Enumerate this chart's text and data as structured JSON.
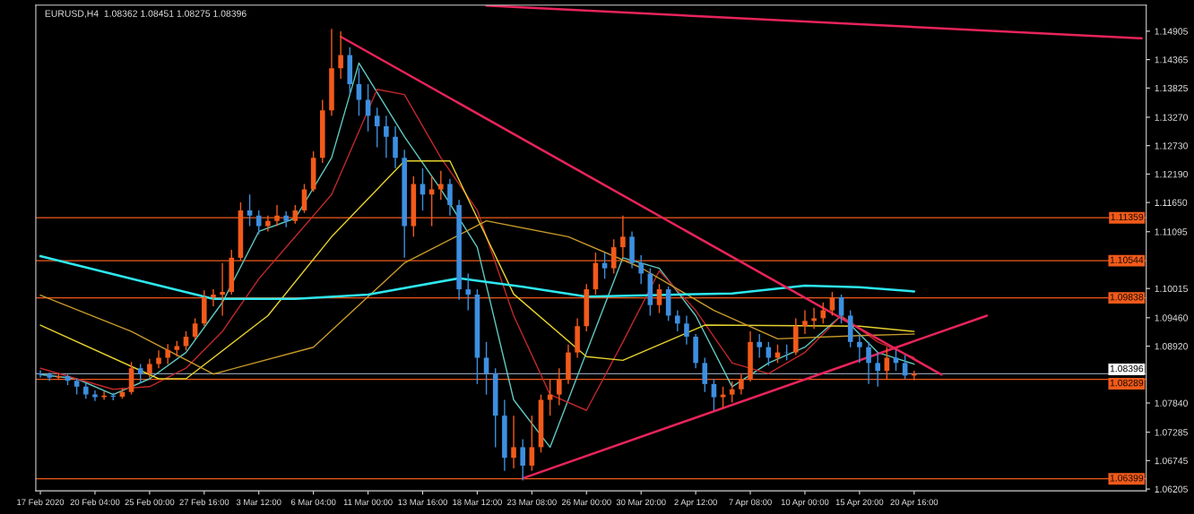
{
  "chart_data": {
    "type": "candlestick",
    "title": "EURUSD,H4  1.08362 1.08451 1.08275 1.08396",
    "categories": [
      "17 Feb 2020",
      null,
      null,
      null,
      null,
      null,
      "20 Feb 04:00",
      null,
      null,
      null,
      null,
      null,
      "25 Feb 00:00",
      null,
      null,
      null,
      null,
      null,
      "27 Feb 16:00",
      null,
      null,
      null,
      null,
      null,
      "3 Mar 12:00",
      null,
      null,
      null,
      null,
      null,
      "6 Mar 04:00",
      null,
      null,
      null,
      null,
      null,
      "11 Mar 00:00",
      null,
      null,
      null,
      null,
      null,
      "13 Mar 16:00",
      null,
      null,
      null,
      null,
      null,
      "18 Mar 12:00",
      null,
      null,
      null,
      null,
      null,
      "23 Mar 08:00",
      null,
      null,
      null,
      null,
      null,
      "26 Mar 00:00",
      null,
      null,
      null,
      null,
      null,
      "30 Mar 20:00",
      null,
      null,
      null,
      null,
      null,
      "2 Apr 12:00",
      null,
      null,
      null,
      null,
      null,
      "7 Apr 08:00",
      null,
      null,
      null,
      null,
      null,
      "10 Apr 00:00",
      null,
      null,
      null,
      null,
      null,
      "15 Apr 20:00",
      null,
      null,
      null,
      null,
      null,
      "20 Apr 16:00",
      null,
      null,
      null,
      null,
      null,
      null,
      null,
      null,
      null,
      null,
      null,
      null,
      null,
      null,
      null,
      null,
      null,
      null,
      null,
      null,
      null,
      null,
      null,
      null,
      null
    ],
    "colors": [
      "#3d8fe0",
      "#3d8fe0",
      "#f25a1a",
      "#3d8fe0",
      "#3d8fe0",
      "#3d8fe0",
      "#3d8fe0",
      "#f25a1a",
      "#3d8fe0",
      "#f25a1a",
      "#f25a1a",
      "#3d8fe0",
      "#f25a1a",
      "#f25a1a",
      "#f25a1a",
      "#f25a1a",
      "#f25a1a",
      "#f25a1a",
      "#f25a1a",
      "#f25a1a",
      "#f25a1a",
      "#f25a1a",
      "#f25a1a",
      "#3d8fe0",
      "#3d8fe0",
      "#f25a1a",
      "#f25a1a",
      "#3d8fe0",
      "#f25a1a",
      "#f25a1a",
      "#f25a1a",
      "#f25a1a",
      "#f25a1a",
      "#f25a1a",
      "#3d8fe0",
      "#3d8fe0",
      "#3d8fe0",
      "#3d8fe0",
      "#3d8fe0",
      "#3d8fe0",
      "#3d8fe0",
      "#f25a1a",
      "#3d8fe0",
      "#f25a1a",
      "#f25a1a",
      "#3d8fe0",
      "#3d8fe0",
      "#3d8fe0",
      "#3d8fe0",
      "#3d8fe0",
      "#3d8fe0",
      "#3d8fe0",
      "#f25a1a",
      "#3d8fe0",
      "#f25a1a",
      "#f25a1a",
      "#f25a1a",
      "#f25a1a",
      "#f25a1a",
      "#f25a1a",
      "#f25a1a",
      "#f25a1a",
      "#3d8fe0",
      "#f25a1a",
      "#f25a1a",
      "#3d8fe0",
      "#3d8fe0",
      "#3d8fe0",
      "#f25a1a",
      "#3d8fe0",
      "#3d8fe0",
      "#3d8fe0",
      "#3d8fe0",
      "#3d8fe0",
      "#3d8fe0",
      "#f25a1a",
      "#f25a1a",
      "#f25a1a",
      "#f25a1a",
      "#3d8fe0",
      "#3d8fe0",
      "#f25a1a",
      "#3d8fe0",
      "#f25a1a",
      "#f25a1a",
      "#f25a1a",
      "#f25a1a",
      "#f25a1a",
      "#3d8fe0",
      "#3d8fe0",
      "#3d8fe0",
      "#3d8fe0",
      "#3d8fe0",
      "#f25a1a",
      "#3d8fe0",
      "#3d8fe0",
      "#f25a1a",
      null,
      null,
      null,
      null,
      null,
      null,
      null,
      null,
      null,
      null,
      null,
      null,
      null,
      null,
      null,
      null,
      null,
      null,
      null,
      null,
      null,
      null,
      null,
      null,
      null
    ],
    "ohlc": [
      [
        1.084,
        1.0846,
        1.0832,
        1.0838
      ],
      [
        1.0838,
        1.0842,
        1.0826,
        1.0832
      ],
      [
        1.0832,
        1.084,
        1.0828,
        1.0835
      ],
      [
        1.0835,
        1.0838,
        1.0818,
        1.0826
      ],
      [
        1.0826,
        1.083,
        1.08,
        1.0815
      ],
      [
        1.0815,
        1.0822,
        1.0792,
        1.08
      ],
      [
        1.08,
        1.0808,
        1.0788,
        1.0795
      ],
      [
        1.0795,
        1.0806,
        1.079,
        1.0798
      ],
      [
        1.0798,
        1.0803,
        1.0789,
        1.0796
      ],
      [
        1.0796,
        1.0812,
        1.0792,
        1.0805
      ],
      [
        1.0805,
        1.0862,
        1.08,
        1.085
      ],
      [
        1.085,
        1.0858,
        1.0822,
        1.084
      ],
      [
        1.084,
        1.0868,
        1.0832,
        1.0858
      ],
      [
        1.0858,
        1.0884,
        1.085,
        1.087
      ],
      [
        1.087,
        1.0896,
        1.0858,
        1.0885
      ],
      [
        1.0885,
        1.0902,
        1.0872,
        1.0892
      ],
      [
        1.0892,
        1.092,
        1.0884,
        1.091
      ],
      [
        1.091,
        1.0945,
        1.0905,
        1.0935
      ],
      [
        1.0935,
        1.0998,
        1.093,
        1.0985
      ],
      [
        1.0985,
        1.1,
        1.0968,
        1.099
      ],
      [
        1.099,
        1.105,
        1.095,
        1.0995
      ],
      [
        1.0995,
        1.1075,
        1.099,
        1.106
      ],
      [
        1.106,
        1.1165,
        1.1055,
        1.115
      ],
      [
        1.115,
        1.118,
        1.112,
        1.114
      ],
      [
        1.114,
        1.115,
        1.1105,
        1.112
      ],
      [
        1.112,
        1.114,
        1.111,
        1.113
      ],
      [
        1.113,
        1.116,
        1.112,
        1.114
      ],
      [
        1.114,
        1.1148,
        1.1118,
        1.113
      ],
      [
        1.113,
        1.116,
        1.1125,
        1.115
      ],
      [
        1.115,
        1.12,
        1.1145,
        1.119
      ],
      [
        1.119,
        1.1262,
        1.1185,
        1.125
      ],
      [
        1.125,
        1.136,
        1.124,
        1.134
      ],
      [
        1.134,
        1.1495,
        1.133,
        1.142
      ],
      [
        1.142,
        1.149,
        1.14,
        1.1445
      ],
      [
        1.1445,
        1.146,
        1.137,
        1.139
      ],
      [
        1.139,
        1.142,
        1.133,
        1.136
      ],
      [
        1.136,
        1.139,
        1.13,
        1.133
      ],
      [
        1.133,
        1.1345,
        1.127,
        1.131
      ],
      [
        1.131,
        1.133,
        1.125,
        1.129
      ],
      [
        1.129,
        1.131,
        1.123,
        1.125
      ],
      [
        1.125,
        1.1265,
        1.106,
        1.112
      ],
      [
        1.112,
        1.1215,
        1.11,
        1.12
      ],
      [
        1.12,
        1.123,
        1.115,
        1.118
      ],
      [
        1.118,
        1.1215,
        1.112,
        1.119
      ],
      [
        1.119,
        1.1225,
        1.117,
        1.12
      ],
      [
        1.12,
        1.121,
        1.114,
        1.116
      ],
      [
        1.116,
        1.117,
        1.098,
        1.1
      ],
      [
        1.1,
        1.103,
        1.096,
        1.099
      ],
      [
        1.099,
        1.1,
        1.082,
        1.087
      ],
      [
        1.087,
        1.09,
        1.08,
        1.084
      ],
      [
        1.084,
        1.085,
        1.07,
        1.076
      ],
      [
        1.076,
        1.079,
        1.0655,
        1.068
      ],
      [
        1.068,
        1.076,
        1.066,
        1.07
      ],
      [
        1.07,
        1.0715,
        1.0637,
        1.0665
      ],
      [
        1.0665,
        1.076,
        1.0655,
        1.07
      ],
      [
        1.07,
        1.08,
        1.069,
        1.079
      ],
      [
        1.079,
        1.083,
        1.076,
        1.08
      ],
      [
        1.08,
        1.085,
        1.078,
        1.083
      ],
      [
        1.083,
        1.0895,
        1.082,
        1.088
      ],
      [
        1.088,
        1.0945,
        1.087,
        1.093
      ],
      [
        1.093,
        1.101,
        1.092,
        1.1
      ],
      [
        1.1,
        1.107,
        1.099,
        1.105
      ],
      [
        1.105,
        1.107,
        1.102,
        1.104
      ],
      [
        1.104,
        1.1095,
        1.103,
        1.108
      ],
      [
        1.108,
        1.114,
        1.106,
        1.11
      ],
      [
        1.11,
        1.111,
        1.104,
        1.105
      ],
      [
        1.105,
        1.1065,
        1.101,
        1.103
      ],
      [
        1.103,
        1.104,
        1.095,
        1.097
      ],
      [
        1.097,
        1.101,
        1.0955,
        1.1
      ],
      [
        1.1,
        1.1005,
        1.094,
        1.095
      ],
      [
        1.095,
        1.096,
        1.092,
        1.0935
      ],
      [
        1.0935,
        1.095,
        1.0895,
        1.091
      ],
      [
        1.091,
        1.0915,
        1.085,
        1.086
      ],
      [
        1.086,
        1.087,
        1.0805,
        1.082
      ],
      [
        1.082,
        1.083,
        1.077,
        1.0795
      ],
      [
        1.0795,
        1.0815,
        1.0775,
        1.08
      ],
      [
        1.08,
        1.0825,
        1.0785,
        1.081
      ],
      [
        1.081,
        1.084,
        1.08,
        1.083
      ],
      [
        1.083,
        1.092,
        1.0825,
        1.09
      ],
      [
        1.09,
        1.0915,
        1.087,
        1.089
      ],
      [
        1.089,
        1.09,
        1.0855,
        1.087
      ],
      [
        1.087,
        1.0895,
        1.086,
        1.088
      ],
      [
        1.088,
        1.0895,
        1.0865,
        1.088
      ],
      [
        1.088,
        1.0945,
        1.0875,
        1.093
      ],
      [
        1.093,
        1.096,
        1.0915,
        1.094
      ],
      [
        1.094,
        1.0965,
        1.0925,
        1.0945
      ],
      [
        1.0945,
        1.0975,
        1.0935,
        1.096
      ],
      [
        1.096,
        1.0995,
        1.095,
        1.0985
      ],
      [
        1.0985,
        1.099,
        1.0935,
        1.095
      ],
      [
        1.095,
        1.096,
        1.089,
        1.09
      ],
      [
        1.09,
        1.0915,
        1.086,
        1.089
      ],
      [
        1.089,
        1.09,
        1.082,
        1.086
      ],
      [
        1.086,
        1.088,
        1.0815,
        1.0845
      ],
      [
        1.0845,
        1.089,
        1.083,
        1.087
      ],
      [
        1.087,
        1.0885,
        1.0845,
        1.086
      ],
      [
        1.086,
        1.0875,
        1.083,
        1.08362
      ],
      [
        1.08362,
        1.08451,
        1.08275,
        1.08396
      ],
      null,
      null,
      null,
      null,
      null,
      null,
      null,
      null,
      null,
      null,
      null,
      null,
      null,
      null,
      null,
      null,
      null,
      null,
      null,
      null,
      null,
      null,
      null,
      null,
      null
    ],
    "series": [
      {
        "type": "line",
        "color": "#5fc9c0",
        "values": [
          1.0838,
          null,
          null,
          null,
          1.083,
          null,
          null,
          null,
          1.08,
          null,
          null,
          null,
          1.083,
          null,
          null,
          null,
          1.088,
          null,
          null,
          null,
          1.0975,
          null,
          null,
          null,
          1.111,
          null,
          null,
          null,
          1.1135,
          null,
          null,
          null,
          1.125,
          null,
          null,
          1.143,
          null,
          null,
          null,
          null,
          1.129,
          null,
          null,
          null,
          1.119,
          null,
          null,
          null,
          1.108,
          null,
          null,
          null,
          1.079,
          null,
          null,
          null,
          1.07,
          null,
          null,
          null,
          1.088,
          null,
          null,
          null,
          1.106,
          null,
          null,
          null,
          1.104,
          null,
          null,
          null,
          1.095,
          null,
          null,
          null,
          1.0815,
          null,
          null,
          null,
          1.086,
          null,
          null,
          null,
          1.089,
          null,
          null,
          null,
          1.095,
          null,
          null,
          null,
          1.088,
          null,
          null,
          null,
          1.0858,
          null,
          null,
          null,
          null,
          null,
          null,
          null,
          null,
          null,
          null,
          null,
          null,
          null,
          null,
          null,
          null,
          null,
          null,
          null,
          null,
          null,
          null,
          null,
          null,
          null
        ]
      },
      {
        "type": "line",
        "color": "#c0282a",
        "values": [
          1.085,
          null,
          null,
          null,
          null,
          null,
          null,
          null,
          1.081,
          null,
          null,
          null,
          1.0815,
          null,
          null,
          null,
          1.085,
          null,
          null,
          null,
          1.092,
          null,
          null,
          null,
          1.102,
          null,
          null,
          null,
          1.11,
          null,
          null,
          null,
          1.118,
          null,
          null,
          null,
          null,
          1.138,
          null,
          null,
          1.137,
          null,
          null,
          null,
          1.125,
          null,
          null,
          null,
          1.115,
          null,
          null,
          null,
          1.095,
          null,
          null,
          null,
          1.08,
          null,
          null,
          null,
          1.077,
          null,
          null,
          null,
          1.09,
          null,
          null,
          null,
          1.1035,
          null,
          null,
          null,
          1.096,
          null,
          null,
          null,
          1.086,
          null,
          null,
          null,
          1.084,
          null,
          null,
          null,
          1.088,
          null,
          null,
          null,
          1.095,
          null,
          null,
          null,
          1.09,
          null,
          null,
          null,
          1.087,
          null,
          null,
          null,
          null,
          null,
          null,
          null,
          null,
          null,
          null,
          null,
          null,
          null,
          null,
          null,
          null,
          null,
          null,
          null,
          null,
          null,
          null,
          null,
          null,
          null
        ]
      },
      {
        "type": "line",
        "color": "#e6d22e",
        "values": [
          1.0932,
          null,
          null,
          null,
          null,
          null,
          null,
          null,
          null,
          null,
          null,
          null,
          null,
          1.083,
          null,
          null,
          1.083,
          null,
          null,
          null,
          null,
          null,
          null,
          null,
          null,
          1.095,
          null,
          null,
          null,
          null,
          null,
          null,
          1.11,
          null,
          null,
          null,
          null,
          null,
          null,
          null,
          1.1244,
          null,
          null,
          null,
          null,
          1.1244,
          null,
          null,
          null,
          null,
          null,
          null,
          1.0991,
          null,
          null,
          null,
          null,
          null,
          null,
          null,
          1.0872,
          null,
          null,
          null,
          1.0865,
          null,
          null,
          null,
          null,
          null,
          null,
          null,
          null,
          1.0932,
          null,
          null,
          null,
          null,
          null,
          null,
          null,
          null,
          null,
          null,
          null,
          null,
          null,
          null,
          null,
          null,
          1.093,
          null,
          null,
          null,
          null,
          null,
          1.092,
          null,
          null,
          null,
          null,
          null,
          null,
          null,
          null,
          null,
          null,
          null,
          null,
          null,
          null,
          null,
          null,
          null,
          null,
          null,
          null,
          null,
          null,
          null,
          null,
          null
        ]
      },
      {
        "type": "line",
        "color": "#c89a2a",
        "values": [
          1.0989,
          null,
          null,
          null,
          null,
          null,
          null,
          null,
          null,
          null,
          1.092,
          null,
          null,
          null,
          null,
          null,
          null,
          null,
          null,
          1.0839,
          null,
          null,
          null,
          null,
          null,
          null,
          null,
          null,
          null,
          null,
          1.089,
          null,
          null,
          null,
          null,
          null,
          null,
          null,
          null,
          null,
          1.105,
          null,
          null,
          null,
          null,
          null,
          null,
          null,
          null,
          1.113,
          null,
          null,
          null,
          null,
          null,
          null,
          null,
          null,
          1.11,
          null,
          null,
          null,
          null,
          null,
          null,
          null,
          1.1041,
          null,
          null,
          null,
          null,
          null,
          null,
          null,
          1.096,
          null,
          null,
          null,
          null,
          null,
          null,
          1.0906,
          null,
          null,
          null,
          null,
          null,
          null,
          null,
          null,
          1.0912,
          null,
          null,
          null,
          null,
          null,
          1.0915,
          null,
          null,
          null,
          null,
          null,
          null,
          null,
          null,
          null,
          null,
          null,
          null,
          null,
          null,
          null,
          null,
          null,
          null,
          null,
          null,
          null,
          null,
          null,
          null,
          null
        ]
      },
      {
        "type": "line",
        "color": "#2ee8f0",
        "values": [
          1.1063,
          null,
          null,
          null,
          null,
          null,
          null,
          null,
          null,
          null,
          1.102,
          null,
          null,
          null,
          null,
          null,
          null,
          null,
          null,
          1.0982,
          null,
          null,
          null,
          null,
          null,
          null,
          null,
          null,
          1.0982,
          null,
          null,
          null,
          null,
          null,
          null,
          null,
          1.099,
          null,
          null,
          null,
          null,
          null,
          null,
          null,
          null,
          null,
          1.1021,
          null,
          null,
          null,
          null,
          null,
          null,
          1.1005,
          null,
          null,
          null,
          null,
          null,
          null,
          1.0986,
          null,
          null,
          null,
          null,
          null,
          null,
          null,
          null,
          null,
          1.099,
          null,
          null,
          null,
          null,
          null,
          1.0992,
          null,
          null,
          null,
          null,
          null,
          null,
          null,
          1.1007,
          null,
          null,
          null,
          null,
          null,
          1.1004,
          null,
          null,
          null,
          null,
          null,
          1.0996,
          null,
          null,
          null,
          null,
          null,
          null,
          null,
          null,
          null,
          null,
          null,
          null,
          null,
          null,
          null,
          null,
          null,
          null,
          null,
          null,
          null,
          null,
          null,
          null,
          null
        ]
      },
      {
        "type": "line",
        "color": "#e8245a",
        "values": [
          null,
          null,
          null,
          null,
          null,
          null,
          null,
          null,
          null,
          null,
          null,
          null,
          null,
          null,
          null,
          null,
          null,
          null,
          null,
          null,
          null,
          null,
          null,
          null,
          null,
          null,
          null,
          null,
          null,
          null,
          null,
          null,
          null,
          1.148,
          null,
          null,
          null,
          null,
          null,
          null,
          null,
          null,
          null,
          null,
          null,
          null,
          null,
          null,
          null,
          null,
          null,
          null,
          null,
          null,
          null,
          null,
          null,
          null,
          null,
          null,
          null,
          null,
          null,
          null,
          null,
          null,
          null,
          null,
          null,
          null,
          null,
          null,
          null,
          null,
          null,
          null,
          null,
          null,
          null,
          null,
          null,
          null,
          null,
          null,
          null,
          null,
          null,
          null,
          null,
          null,
          null,
          null,
          null,
          null,
          null,
          null,
          null,
          null,
          null,
          1.0838,
          null,
          null,
          null,
          null,
          null,
          null,
          null,
          null,
          null,
          null,
          null,
          null,
          null,
          null,
          null,
          null,
          null,
          null,
          null,
          null,
          null,
          null
        ]
      },
      {
        "type": "line",
        "color": "#e8245a",
        "values": [
          null,
          null,
          null,
          null,
          null,
          null,
          null,
          null,
          null,
          null,
          null,
          null,
          null,
          null,
          null,
          null,
          null,
          null,
          null,
          null,
          null,
          null,
          null,
          null,
          null,
          null,
          null,
          null,
          null,
          null,
          null,
          null,
          null,
          null,
          null,
          null,
          null,
          null,
          null,
          null,
          null,
          null,
          null,
          null,
          null,
          null,
          null,
          null,
          null,
          null,
          null,
          null,
          null,
          1.0641,
          null,
          null,
          null,
          null,
          null,
          null,
          null,
          null,
          null,
          null,
          null,
          null,
          null,
          null,
          null,
          null,
          null,
          null,
          null,
          null,
          null,
          null,
          null,
          null,
          null,
          null,
          null,
          null,
          null,
          null,
          null,
          null,
          null,
          null,
          null,
          null,
          null,
          null,
          null,
          null,
          null,
          null,
          null,
          null,
          null,
          null,
          null,
          null,
          null,
          null,
          1.095,
          null,
          null,
          null,
          null,
          null,
          null,
          null,
          null,
          null,
          null,
          null,
          null,
          null,
          null,
          null,
          null,
          null
        ]
      },
      {
        "type": "line",
        "color": "#e8245a",
        "values": [
          null,
          null,
          null,
          null,
          null,
          null,
          null,
          null,
          null,
          null,
          null,
          null,
          null,
          null,
          null,
          null,
          null,
          null,
          null,
          null,
          null,
          null,
          null,
          null,
          null,
          null,
          null,
          null,
          null,
          null,
          null,
          null,
          null,
          null,
          null,
          null,
          null,
          null,
          null,
          null,
          null,
          null,
          null,
          null,
          null,
          null,
          null,
          null,
          null,
          1.1539,
          null,
          null,
          null,
          null,
          null,
          null,
          null,
          null,
          null,
          null,
          null,
          null,
          null,
          null,
          null,
          null,
          null,
          null,
          null,
          null,
          null,
          null,
          null,
          null,
          null,
          null,
          null,
          null,
          null,
          null,
          null,
          null,
          null,
          null,
          null,
          null,
          null,
          null,
          null,
          null,
          null,
          null,
          null,
          null,
          null,
          null,
          null,
          null,
          null,
          null,
          null,
          null,
          null,
          null,
          null,
          null,
          null,
          null,
          null,
          null,
          null,
          null,
          null,
          null,
          null,
          null,
          null,
          null,
          null,
          null,
          null,
          1.1477
        ]
      }
    ],
    "ref_lines": [
      {
        "axis": "y",
        "value": 1.11359,
        "label": "1.11359",
        "color": "#f05a1a"
      },
      {
        "axis": "y",
        "value": 1.10544,
        "label": "1.10544",
        "color": "#f05a1a"
      },
      {
        "axis": "y",
        "value": 1.09838,
        "label": "1.09838",
        "color": "#f05a1a"
      },
      {
        "axis": "y",
        "value": 1.08396,
        "label": "1.08396",
        "color": "#8a97a8"
      },
      {
        "axis": "y",
        "value": 1.08289,
        "label": "1.08289",
        "color": "#f05a1a"
      },
      {
        "axis": "y",
        "value": 1.06399,
        "label": "1.06399",
        "color": "#f05a1a"
      }
    ],
    "ylim": [
      1.0617,
      1.154
    ],
    "yticks": [
      {
        "value": 1.14905,
        "label": "1.14905"
      },
      {
        "value": 1.14365,
        "label": "1.14365"
      },
      {
        "value": 1.13825,
        "label": "1.13825"
      },
      {
        "value": 1.1327,
        "label": "1.13270"
      },
      {
        "value": 1.1273,
        "label": "1.12730"
      },
      {
        "value": 1.1219,
        "label": "1.12190"
      },
      {
        "value": 1.1165,
        "label": "1.11650"
      },
      {
        "value": 1.11095,
        "label": "1.11095"
      },
      {
        "value": 1.10015,
        "label": "1.10015"
      },
      {
        "value": 1.0946,
        "label": "1.09460"
      },
      {
        "value": 1.0892,
        "label": "1.08920"
      },
      {
        "value": 1.0784,
        "label": "1.07840"
      },
      {
        "value": 1.07285,
        "label": "1.07285"
      },
      {
        "value": 1.06745,
        "label": "1.06745"
      },
      {
        "value": 1.06205,
        "label": "1.06205"
      }
    ]
  }
}
